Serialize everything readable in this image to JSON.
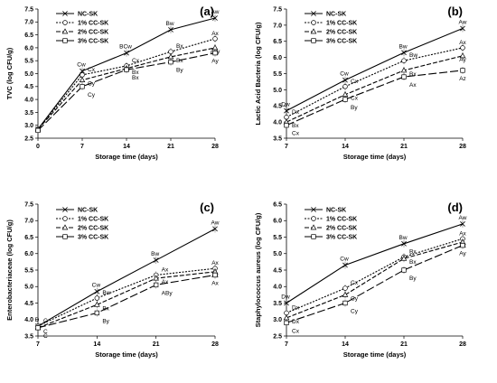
{
  "series_styles": [
    {
      "dash": "",
      "marker": "x"
    },
    {
      "dash": "2,1.5",
      "marker": "circle"
    },
    {
      "dash": "5,2",
      "marker": "triangle"
    },
    {
      "dash": "9,3",
      "marker": "square"
    }
  ],
  "chart_data": [
    {
      "type": "line",
      "panel_label": "(a)",
      "xlabel": "Storage time (days)",
      "ylabel": "TVC (log CFU/g)",
      "x": [
        0,
        7,
        14,
        21,
        28
      ],
      "xlim": [
        0,
        28
      ],
      "ylim": [
        2.5,
        7.5
      ],
      "yticks": [
        2.5,
        3.0,
        3.5,
        4.0,
        4.5,
        5.0,
        5.5,
        6.0,
        6.5,
        7.0,
        7.5
      ],
      "ytick_labels": [
        "2.5",
        "3.0",
        "3.5",
        "4.0",
        "4.5",
        "5.0",
        "5.5",
        "6.0",
        "6.5",
        "7.0",
        "7.5"
      ],
      "legend_position": "top-left",
      "series": [
        {
          "name": "NC-SK",
          "values": [
            2.85,
            5.1,
            5.8,
            6.7,
            7.15
          ],
          "labels": [
            "",
            "Cw",
            "BCw",
            "Bw",
            "Aw"
          ]
        },
        {
          "name": "1% CC-SK",
          "values": [
            2.85,
            4.95,
            5.3,
            5.85,
            6.35
          ],
          "labels": [
            "",
            "Cx",
            "Cx",
            "Bx",
            "Ax"
          ]
        },
        {
          "name": "2% CC-SK",
          "values": [
            2.85,
            4.75,
            5.2,
            5.65,
            6.0
          ],
          "labels": [
            "",
            "Cy",
            "Bx",
            "Bx",
            "Axy"
          ]
        },
        {
          "name": "3% CC-SK",
          "values": [
            2.8,
            4.5,
            5.15,
            5.45,
            5.8
          ],
          "labels": [
            "",
            "Cy",
            "Bx",
            "By",
            "Ay"
          ]
        }
      ]
    },
    {
      "type": "line",
      "panel_label": "(b)",
      "xlabel": "Storage time (days)",
      "ylabel": "Lactic Acid Bacteria (log CFU/g)",
      "x": [
        7,
        14,
        21,
        28
      ],
      "xlim": [
        7,
        28
      ],
      "ylim": [
        3.5,
        7.5
      ],
      "yticks": [
        3.5,
        4.0,
        4.5,
        5.0,
        5.5,
        6.0,
        6.5,
        7.0,
        7.5
      ],
      "ytick_labels": [
        "3.5",
        "4.0",
        "4.5",
        "5.0",
        "5.5",
        "6.0",
        "6.5",
        "7.0",
        "7.5"
      ],
      "legend_position": "top-left",
      "series": [
        {
          "name": "NC-SK",
          "values": [
            4.35,
            5.3,
            6.15,
            6.9
          ],
          "labels": [
            "Dw",
            "Cw",
            "Bw",
            "Aw"
          ]
        },
        {
          "name": "1% CC-SK",
          "values": [
            4.15,
            5.1,
            5.9,
            6.3
          ],
          "labels": [
            "Dx",
            "Cx",
            "Bw",
            "Ax"
          ]
        },
        {
          "name": "2% CC-SK",
          "values": [
            4.0,
            4.85,
            5.6,
            6.05
          ],
          "labels": [
            "Bx",
            "Cx",
            "Bx",
            "Ay"
          ]
        },
        {
          "name": "3% CC-SK",
          "values": [
            3.9,
            4.7,
            5.4,
            5.6
          ],
          "labels": [
            "Cx",
            "By",
            "Ax",
            "Az"
          ]
        }
      ]
    },
    {
      "type": "line",
      "panel_label": "(c)",
      "xlabel": "Storage time (days)",
      "ylabel": "Enterobacteriaceae (log CFU/g)",
      "x": [
        7,
        14,
        21,
        28
      ],
      "xlim": [
        7,
        28
      ],
      "ylim": [
        3.5,
        7.5
      ],
      "yticks": [
        3.5,
        4.0,
        4.5,
        5.0,
        5.5,
        6.0,
        6.5,
        7.0,
        7.5
      ],
      "ytick_labels": [
        "3.5",
        "4.0",
        "4.5",
        "5.0",
        "5.5",
        "6.0",
        "6.5",
        "7.0",
        "7.5"
      ],
      "legend_position": "top-left",
      "series": [
        {
          "name": "NC-SK",
          "values": [
            3.8,
            4.85,
            5.8,
            6.75
          ],
          "labels": [
            "D",
            "Cw",
            "Bw",
            "Aw"
          ]
        },
        {
          "name": "1% CC-SK",
          "values": [
            3.8,
            4.65,
            5.35,
            5.55
          ],
          "labels": [
            "C",
            "Bw",
            "Ax",
            "Ax"
          ]
        },
        {
          "name": "2% CC-SK",
          "values": [
            3.75,
            4.45,
            5.25,
            5.45
          ],
          "labels": [
            "C",
            "Bx",
            "Ax",
            "Ax"
          ]
        },
        {
          "name": "3% CC-SK",
          "values": [
            3.75,
            4.2,
            5.05,
            5.35
          ],
          "labels": [
            "C",
            "By",
            "ABy",
            "Ax"
          ]
        }
      ]
    },
    {
      "type": "line",
      "panel_label": "(d)",
      "xlabel": "Storage time (days)",
      "ylabel": "Staphylococcus aureus (log CFU/g)",
      "x": [
        7,
        14,
        21,
        28
      ],
      "xlim": [
        7,
        28
      ],
      "ylim": [
        2.5,
        6.5
      ],
      "yticks": [
        2.5,
        3.0,
        3.5,
        4.0,
        4.5,
        5.0,
        5.5,
        6.0,
        6.5
      ],
      "ytick_labels": [
        "2.5",
        "3.0",
        "3.5",
        "4.0",
        "4.5",
        "5.0",
        "5.5",
        "6.0",
        "6.5"
      ],
      "legend_position": "top-left",
      "series": [
        {
          "name": "NC-SK",
          "values": [
            3.5,
            4.65,
            5.3,
            5.9
          ],
          "labels": [
            "Dw",
            "Cw",
            "Bw",
            "Aw"
          ]
        },
        {
          "name": "1% CC-SK",
          "values": [
            3.2,
            3.95,
            4.9,
            5.45
          ],
          "labels": [
            "Dx",
            "Cx",
            "Bx",
            "Ax"
          ]
        },
        {
          "name": "2% CC-SK",
          "values": [
            3.05,
            3.75,
            4.85,
            5.35
          ],
          "labels": [
            "Dx",
            "Cy",
            "Bx",
            "Ax"
          ]
        },
        {
          "name": "3% CC-SK",
          "values": [
            2.9,
            3.5,
            4.5,
            5.25
          ],
          "labels": [
            "Cx",
            "Cy",
            "By",
            "Ay"
          ]
        }
      ]
    }
  ]
}
